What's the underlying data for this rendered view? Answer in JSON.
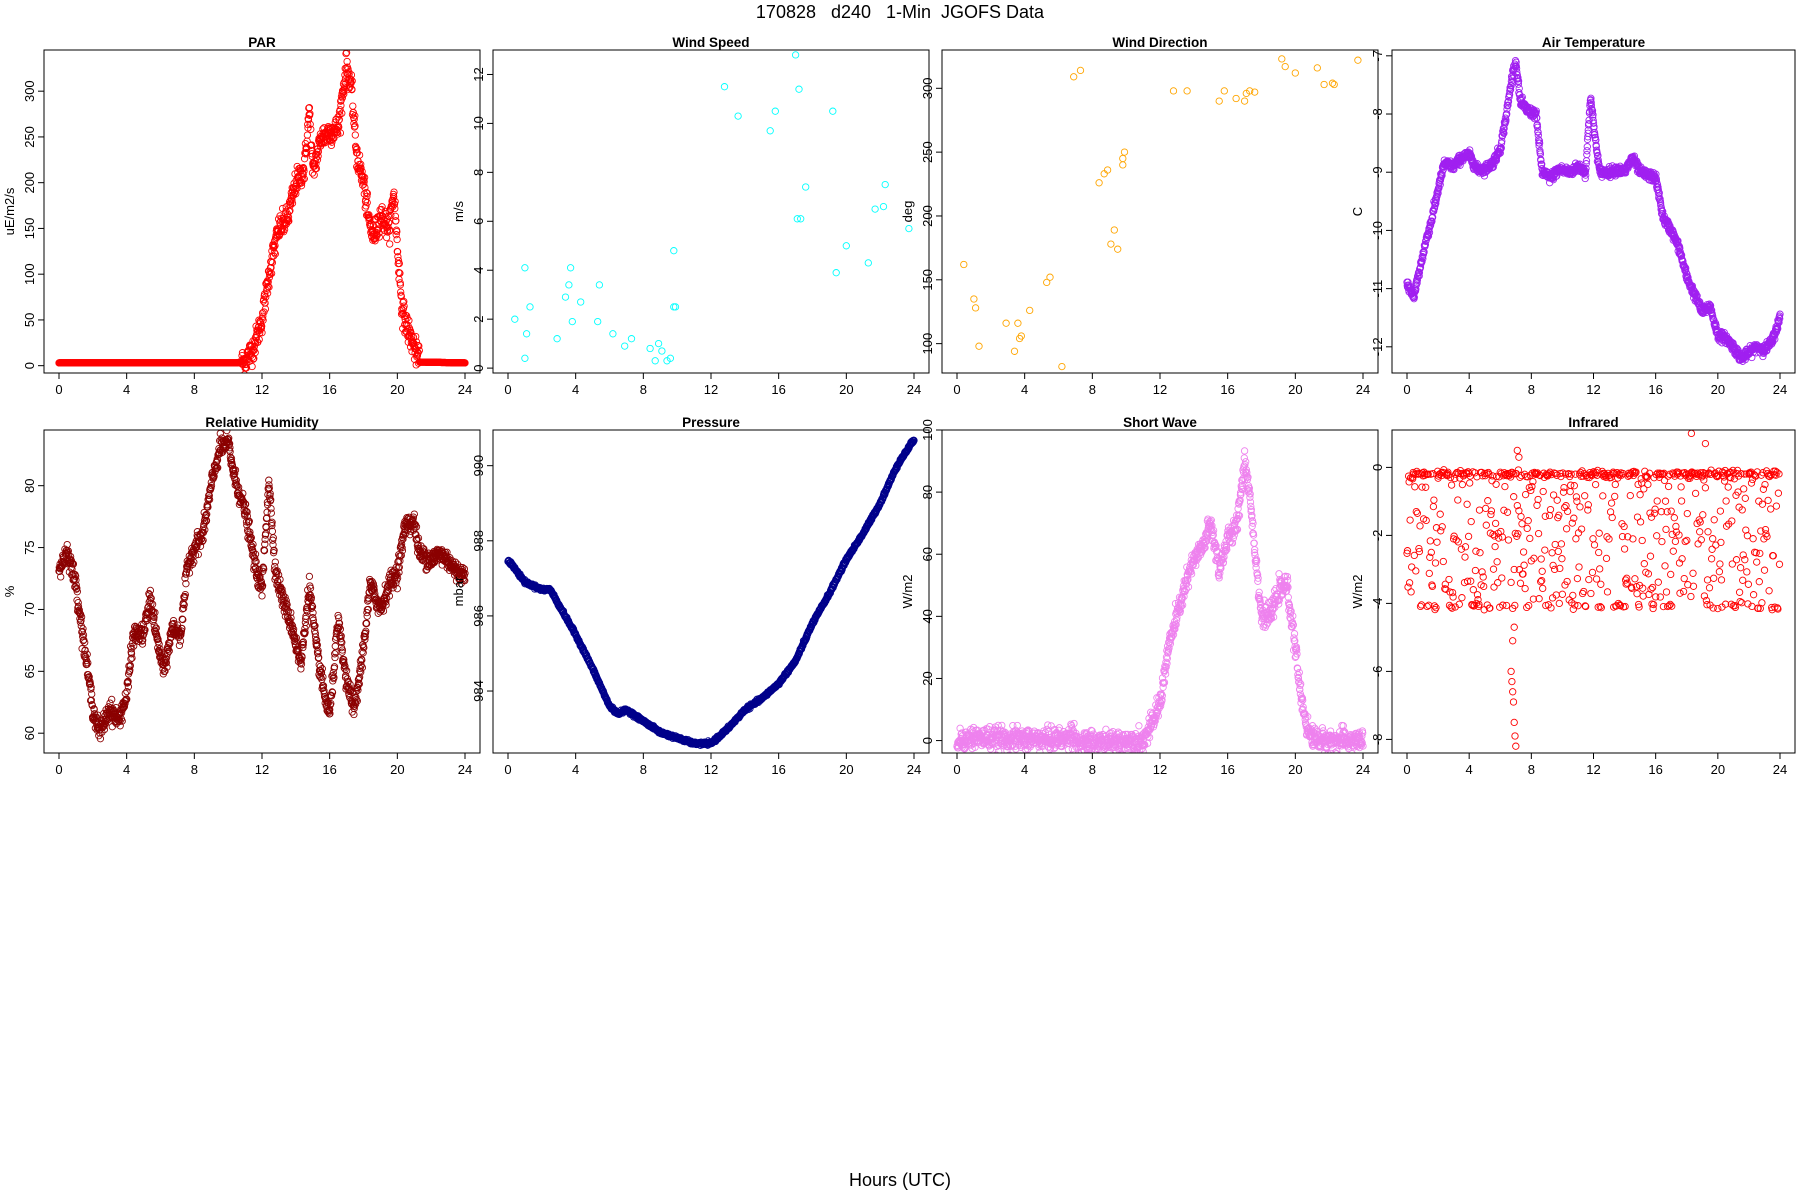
{
  "figure": {
    "title": "170828   d240   1-Min  JGOFS Data",
    "xlabel": "Hours (UTC)"
  },
  "chart_data": [
    {
      "id": "par",
      "type": "scatter",
      "title": "PAR",
      "ylabel": "uE/m2/s",
      "color": "#ff0000",
      "xlim": [
        0,
        24
      ],
      "ylim": [
        -8,
        345
      ],
      "xticks": [
        0,
        4,
        8,
        12,
        16,
        20,
        24
      ],
      "yticks": [
        0,
        50,
        100,
        150,
        200,
        250,
        300
      ],
      "profile": [
        [
          0,
          3
        ],
        [
          10.5,
          3
        ],
        [
          11,
          5
        ],
        [
          11.5,
          20
        ],
        [
          12,
          50
        ],
        [
          12.5,
          110
        ],
        [
          13,
          150
        ],
        [
          13.5,
          160
        ],
        [
          14,
          200
        ],
        [
          14.5,
          215
        ],
        [
          14.8,
          280
        ],
        [
          15,
          210
        ],
        [
          15.5,
          250
        ],
        [
          16,
          255
        ],
        [
          16.5,
          260
        ],
        [
          17,
          330
        ],
        [
          17.3,
          300
        ],
        [
          17.6,
          230
        ],
        [
          18,
          200
        ],
        [
          18.3,
          160
        ],
        [
          18.6,
          140
        ],
        [
          19,
          165
        ],
        [
          19.5,
          150
        ],
        [
          19.8,
          190
        ],
        [
          20,
          130
        ],
        [
          20.3,
          60
        ],
        [
          20.7,
          35
        ],
        [
          21,
          20
        ],
        [
          21.3,
          4
        ],
        [
          24,
          3
        ]
      ],
      "noise": 14,
      "step_min": 1
    },
    {
      "id": "wind-speed",
      "type": "scatter",
      "title": "Wind Speed",
      "ylabel": "m/s",
      "color": "#00ffff",
      "xlim": [
        0,
        24
      ],
      "ylim": [
        -0.2,
        13
      ],
      "xticks": [
        0,
        4,
        8,
        12,
        16,
        20,
        24
      ],
      "yticks": [
        0,
        2,
        4,
        6,
        8,
        10,
        12
      ],
      "points": [
        [
          0.4,
          2.0
        ],
        [
          1.0,
          4.1
        ],
        [
          1.1,
          1.4
        ],
        [
          1.3,
          2.5
        ],
        [
          1.0,
          0.4
        ],
        [
          2.9,
          1.2
        ],
        [
          3.4,
          2.9
        ],
        [
          3.7,
          4.1
        ],
        [
          3.6,
          3.4
        ],
        [
          3.8,
          1.9
        ],
        [
          4.3,
          2.7
        ],
        [
          5.3,
          1.9
        ],
        [
          5.4,
          3.4
        ],
        [
          6.2,
          1.4
        ],
        [
          6.9,
          0.9
        ],
        [
          7.3,
          1.2
        ],
        [
          8.4,
          0.8
        ],
        [
          8.7,
          0.3
        ],
        [
          8.9,
          1.0
        ],
        [
          9.1,
          0.7
        ],
        [
          9.4,
          0.3
        ],
        [
          9.6,
          0.4
        ],
        [
          9.8,
          4.8
        ],
        [
          9.8,
          2.5
        ],
        [
          9.9,
          2.5
        ],
        [
          12.8,
          11.5
        ],
        [
          13.6,
          10.3
        ],
        [
          15.5,
          9.7
        ],
        [
          15.8,
          10.5
        ],
        [
          17.0,
          12.8
        ],
        [
          17.1,
          6.1
        ],
        [
          17.2,
          11.4
        ],
        [
          17.3,
          6.1
        ],
        [
          17.6,
          7.4
        ],
        [
          19.2,
          10.5
        ],
        [
          19.4,
          3.9
        ],
        [
          20.0,
          5.0
        ],
        [
          21.3,
          4.3
        ],
        [
          21.7,
          6.5
        ],
        [
          22.2,
          6.6
        ],
        [
          22.3,
          7.5
        ],
        [
          23.7,
          5.7
        ]
      ]
    },
    {
      "id": "wind-direction",
      "type": "scatter",
      "title": "Wind Direction",
      "ylabel": "deg",
      "color": "#ffa500",
      "xlim": [
        0,
        24
      ],
      "ylim": [
        77,
        330
      ],
      "xticks": [
        0,
        4,
        8,
        12,
        16,
        20,
        24
      ],
      "yticks": [
        100,
        150,
        200,
        250,
        300
      ],
      "points": [
        [
          0.4,
          162
        ],
        [
          1.0,
          135
        ],
        [
          1.1,
          128
        ],
        [
          1.3,
          98
        ],
        [
          2.9,
          116
        ],
        [
          3.4,
          94
        ],
        [
          3.6,
          116
        ],
        [
          3.7,
          104
        ],
        [
          3.8,
          106
        ],
        [
          4.3,
          126
        ],
        [
          5.3,
          148
        ],
        [
          5.5,
          152
        ],
        [
          6.2,
          82
        ],
        [
          6.9,
          309
        ],
        [
          7.3,
          314
        ],
        [
          8.4,
          226
        ],
        [
          8.7,
          233
        ],
        [
          8.9,
          236
        ],
        [
          9.1,
          178
        ],
        [
          9.3,
          189
        ],
        [
          9.5,
          174
        ],
        [
          9.8,
          245
        ],
        [
          9.8,
          240
        ],
        [
          9.9,
          250
        ],
        [
          12.8,
          298
        ],
        [
          13.6,
          298
        ],
        [
          15.5,
          290
        ],
        [
          15.8,
          298
        ],
        [
          16.5,
          292
        ],
        [
          17.0,
          290
        ],
        [
          17.1,
          296
        ],
        [
          17.3,
          298
        ],
        [
          17.6,
          297
        ],
        [
          19.2,
          323
        ],
        [
          19.4,
          317
        ],
        [
          20.0,
          312
        ],
        [
          21.3,
          316
        ],
        [
          21.7,
          303
        ],
        [
          22.2,
          304
        ],
        [
          22.3,
          303
        ],
        [
          23.7,
          322
        ]
      ]
    },
    {
      "id": "air-temperature",
      "type": "scatter",
      "title": "Air Temperature",
      "ylabel": "C",
      "color": "#a020f0",
      "xlim": [
        0,
        24
      ],
      "ylim": [
        -12.45,
        -6.9
      ],
      "xticks": [
        0,
        4,
        8,
        12,
        16,
        20,
        24
      ],
      "yticks": [
        -12,
        -11,
        -10,
        -9,
        -8,
        -7
      ],
      "profile": [
        [
          0,
          -10.9
        ],
        [
          0.4,
          -11.15
        ],
        [
          0.8,
          -10.7
        ],
        [
          1.2,
          -10.2
        ],
        [
          1.6,
          -9.8
        ],
        [
          2.0,
          -9.3
        ],
        [
          2.4,
          -8.85
        ],
        [
          3.0,
          -8.9
        ],
        [
          3.5,
          -8.75
        ],
        [
          4.0,
          -8.7
        ],
        [
          4.5,
          -8.95
        ],
        [
          5.0,
          -8.95
        ],
        [
          5.5,
          -8.85
        ],
        [
          6.0,
          -8.6
        ],
        [
          6.4,
          -8.0
        ],
        [
          6.8,
          -7.3
        ],
        [
          7.0,
          -7.1
        ],
        [
          7.3,
          -7.8
        ],
        [
          7.8,
          -7.95
        ],
        [
          8.3,
          -8.0
        ],
        [
          8.7,
          -9.0
        ],
        [
          9.2,
          -9.1
        ],
        [
          9.8,
          -8.95
        ],
        [
          10.5,
          -9.0
        ],
        [
          11.0,
          -8.9
        ],
        [
          11.5,
          -9.0
        ],
        [
          11.8,
          -7.7
        ],
        [
          12.1,
          -8.4
        ],
        [
          12.4,
          -9.0
        ],
        [
          13.0,
          -9.0
        ],
        [
          13.5,
          -8.95
        ],
        [
          14.0,
          -9.0
        ],
        [
          14.5,
          -8.75
        ],
        [
          15.0,
          -9.0
        ],
        [
          15.5,
          -9.05
        ],
        [
          16.0,
          -9.1
        ],
        [
          16.5,
          -9.8
        ],
        [
          17.0,
          -10.0
        ],
        [
          17.5,
          -10.3
        ],
        [
          18.0,
          -10.8
        ],
        [
          18.5,
          -11.1
        ],
        [
          19.0,
          -11.4
        ],
        [
          19.5,
          -11.3
        ],
        [
          20.0,
          -11.8
        ],
        [
          20.5,
          -11.85
        ],
        [
          21.0,
          -12.0
        ],
        [
          21.5,
          -12.2
        ],
        [
          22.0,
          -12.1
        ],
        [
          22.5,
          -12.0
        ],
        [
          23.0,
          -12.05
        ],
        [
          23.5,
          -11.9
        ],
        [
          24.0,
          -11.5
        ]
      ],
      "noise": 0.08,
      "step_min": 1
    },
    {
      "id": "relative-humidity",
      "type": "scatter",
      "title": "Relative Humidity",
      "ylabel": "%",
      "color": "#8b0000",
      "xlim": [
        0,
        24
      ],
      "ylim": [
        58.4,
        84.5
      ],
      "xticks": [
        0,
        4,
        8,
        12,
        16,
        20,
        24
      ],
      "yticks": [
        60,
        65,
        70,
        75,
        80
      ],
      "profile": [
        [
          0,
          73.2
        ],
        [
          0.5,
          74.8
        ],
        [
          1.0,
          72.0
        ],
        [
          1.5,
          67.0
        ],
        [
          2.0,
          62.0
        ],
        [
          2.4,
          60.0
        ],
        [
          3.0,
          62.0
        ],
        [
          3.5,
          61.0
        ],
        [
          4.0,
          63.0
        ],
        [
          4.4,
          68.0
        ],
        [
          5.0,
          68.0
        ],
        [
          5.4,
          71.0
        ],
        [
          5.8,
          67.5
        ],
        [
          6.2,
          65.0
        ],
        [
          6.7,
          68.5
        ],
        [
          7.2,
          68.0
        ],
        [
          7.6,
          73.5
        ],
        [
          8.0,
          75.0
        ],
        [
          8.5,
          76.0
        ],
        [
          9.0,
          80.0
        ],
        [
          9.5,
          83.0
        ],
        [
          10.0,
          83.5
        ],
        [
          10.4,
          80.5
        ],
        [
          11.0,
          78.0
        ],
        [
          11.6,
          73.5
        ],
        [
          12.0,
          71.5
        ],
        [
          12.4,
          80.5
        ],
        [
          12.8,
          73.0
        ],
        [
          13.3,
          70.5
        ],
        [
          13.8,
          68.5
        ],
        [
          14.3,
          65.5
        ],
        [
          14.8,
          72.0
        ],
        [
          15.2,
          67.0
        ],
        [
          15.7,
          63.0
        ],
        [
          16.0,
          61.5
        ],
        [
          16.5,
          69.0
        ],
        [
          17.0,
          64.0
        ],
        [
          17.5,
          62.0
        ],
        [
          18.0,
          67.0
        ],
        [
          18.4,
          72.0
        ],
        [
          19.0,
          70.0
        ],
        [
          19.5,
          72.0
        ],
        [
          20.0,
          73.0
        ],
        [
          20.5,
          77.0
        ],
        [
          21.0,
          77.0
        ],
        [
          21.3,
          74.5
        ],
        [
          22.0,
          74.0
        ],
        [
          22.5,
          74.5
        ],
        [
          23.0,
          74.0
        ],
        [
          23.5,
          73.0
        ],
        [
          24.0,
          72.8
        ]
      ],
      "noise": 0.8,
      "step_min": 1
    },
    {
      "id": "pressure",
      "type": "scatter",
      "title": "Pressure",
      "ylabel": "mbar",
      "color": "#00008b",
      "xlim": [
        0,
        24
      ],
      "ylim": [
        982.35,
        990.95
      ],
      "xticks": [
        0,
        4,
        8,
        12,
        16,
        20,
        24
      ],
      "yticks": [
        984,
        986,
        988,
        990
      ],
      "profile": [
        [
          0,
          987.5
        ],
        [
          0.5,
          987.2
        ],
        [
          1.0,
          986.9
        ],
        [
          1.5,
          986.8
        ],
        [
          2.0,
          986.7
        ],
        [
          2.5,
          986.7
        ],
        [
          3.0,
          986.3
        ],
        [
          4.0,
          985.5
        ],
        [
          5.0,
          984.6
        ],
        [
          6.0,
          983.6
        ],
        [
          6.5,
          983.4
        ],
        [
          7.0,
          983.5
        ],
        [
          8.0,
          983.2
        ],
        [
          9.0,
          982.9
        ],
        [
          10.0,
          982.75
        ],
        [
          11.0,
          982.6
        ],
        [
          12.0,
          982.6
        ],
        [
          13.0,
          983.0
        ],
        [
          14.0,
          983.5
        ],
        [
          15.0,
          983.8
        ],
        [
          16.0,
          984.2
        ],
        [
          17.0,
          984.8
        ],
        [
          18.0,
          985.8
        ],
        [
          19.0,
          986.6
        ],
        [
          20.0,
          987.5
        ],
        [
          21.0,
          988.2
        ],
        [
          22.0,
          989.0
        ],
        [
          23.0,
          990.0
        ],
        [
          24.0,
          990.7
        ]
      ],
      "noise": 0.04,
      "step_min": 1
    },
    {
      "id": "short-wave",
      "type": "scatter",
      "title": "Short Wave",
      "ylabel": "W/m2",
      "color": "#ee82ee",
      "xlim": [
        0,
        24
      ],
      "ylim": [
        -4,
        100
      ],
      "xticks": [
        0,
        4,
        8,
        12,
        16,
        20,
        24
      ],
      "yticks": [
        0,
        20,
        40,
        60,
        80,
        100
      ],
      "profile": [
        [
          0,
          0
        ],
        [
          1.0,
          1
        ],
        [
          3.0,
          0.5
        ],
        [
          6.5,
          0.5
        ],
        [
          6.8,
          3
        ],
        [
          7.0,
          1
        ],
        [
          7.2,
          -1
        ],
        [
          10.5,
          0
        ],
        [
          11.0,
          0
        ],
        [
          11.5,
          5
        ],
        [
          12.0,
          12
        ],
        [
          12.5,
          30
        ],
        [
          13.0,
          40
        ],
        [
          13.5,
          50
        ],
        [
          14.0,
          58
        ],
        [
          14.5,
          62
        ],
        [
          15.0,
          70
        ],
        [
          15.5,
          55
        ],
        [
          16.0,
          65
        ],
        [
          16.5,
          68
        ],
        [
          17.0,
          90
        ],
        [
          17.3,
          80
        ],
        [
          17.6,
          62
        ],
        [
          18.0,
          40
        ],
        [
          18.5,
          40
        ],
        [
          19.0,
          48
        ],
        [
          19.5,
          50
        ],
        [
          20.0,
          30
        ],
        [
          20.3,
          15
        ],
        [
          20.8,
          2
        ],
        [
          21.5,
          0
        ],
        [
          23.0,
          0
        ],
        [
          24,
          0
        ]
      ],
      "noise": 3.5,
      "step_min": 1
    },
    {
      "id": "infrared",
      "type": "scatter",
      "title": "Infrared",
      "ylabel": "W/m2",
      "color": "#ff0000",
      "xlim": [
        0,
        24
      ],
      "ylim": [
        -8.4,
        1.1
      ],
      "xticks": [
        0,
        4,
        8,
        12,
        16,
        20,
        24
      ],
      "yticks": [
        -8,
        -6,
        -4,
        -2,
        0
      ],
      "baseline": -0.2,
      "low": -4.1,
      "outliers": [
        [
          6.7,
          -6.0
        ],
        [
          6.75,
          -6.3
        ],
        [
          6.8,
          -6.6
        ],
        [
          6.85,
          -6.9
        ],
        [
          6.9,
          -7.5
        ],
        [
          6.95,
          -7.9
        ],
        [
          7.0,
          -8.2
        ],
        [
          6.8,
          -5.1
        ],
        [
          6.9,
          -4.7
        ],
        [
          18.3,
          1.0
        ],
        [
          19.2,
          0.7
        ],
        [
          7.1,
          0.5
        ],
        [
          7.2,
          0.3
        ]
      ],
      "n_points": 1440
    }
  ]
}
